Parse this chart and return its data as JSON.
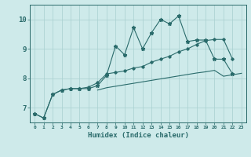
{
  "xlabel": "Humidex (Indice chaleur)",
  "x_values": [
    0,
    1,
    2,
    3,
    4,
    5,
    6,
    7,
    8,
    9,
    10,
    11,
    12,
    13,
    14,
    15,
    16,
    17,
    18,
    19,
    20,
    21,
    22,
    23
  ],
  "line1": [
    6.8,
    6.65,
    7.45,
    7.6,
    7.65,
    7.65,
    7.65,
    7.75,
    8.1,
    9.1,
    8.8,
    9.72,
    9.0,
    9.55,
    10.0,
    9.85,
    10.12,
    9.25,
    9.3,
    9.3,
    8.65,
    8.65,
    8.15,
    null
  ],
  "line2": [
    6.8,
    6.65,
    7.45,
    7.6,
    7.65,
    7.65,
    7.7,
    7.85,
    8.15,
    8.2,
    8.25,
    8.35,
    8.4,
    8.55,
    8.65,
    8.75,
    8.9,
    9.0,
    9.15,
    9.28,
    9.32,
    9.32,
    8.65,
    null
  ],
  "line3": [
    null,
    null,
    null,
    null,
    null,
    null,
    null,
    7.6,
    7.68,
    7.73,
    7.78,
    7.83,
    7.88,
    7.93,
    7.98,
    8.03,
    8.08,
    8.13,
    8.18,
    8.22,
    8.27,
    8.07,
    8.12,
    8.17
  ],
  "line_color": "#2a6b6b",
  "bg_color": "#ceeaea",
  "grid_color": "#a8d0d0",
  "ylim": [
    6.5,
    10.5
  ],
  "xlim": [
    -0.5,
    23.5
  ],
  "yticks": [
    7,
    8,
    9,
    10
  ],
  "xticks": [
    0,
    1,
    2,
    3,
    4,
    5,
    6,
    7,
    8,
    9,
    10,
    11,
    12,
    13,
    14,
    15,
    16,
    17,
    18,
    19,
    20,
    21,
    22,
    23
  ]
}
